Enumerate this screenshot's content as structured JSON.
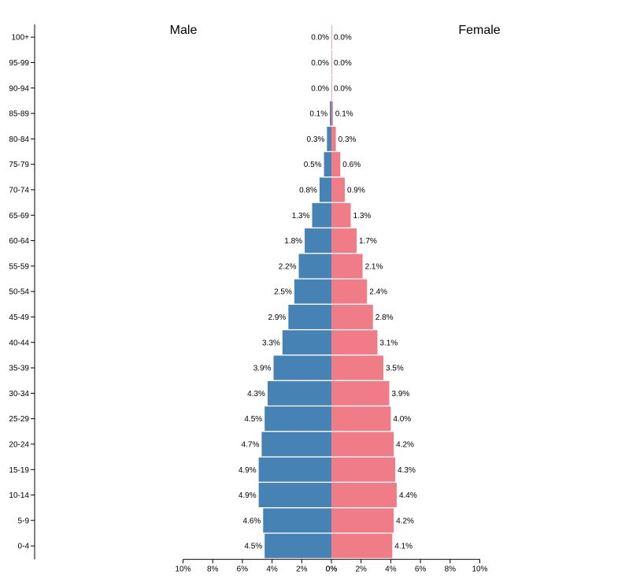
{
  "chart_data": {
    "type": "bar",
    "orientation": "horizontal-population-pyramid",
    "categories": [
      "100+",
      "95-99",
      "90-94",
      "85-89",
      "80-84",
      "75-79",
      "70-74",
      "65-69",
      "60-64",
      "55-59",
      "50-54",
      "45-49",
      "40-44",
      "35-39",
      "30-34",
      "25-29",
      "20-24",
      "15-19",
      "10-14",
      "5-9",
      "0-4"
    ],
    "series": [
      {
        "name": "Male",
        "color": "#4682b4",
        "values": [
          0.0,
          0.0,
          0.0,
          0.1,
          0.3,
          0.5,
          0.8,
          1.3,
          1.8,
          2.2,
          2.5,
          2.9,
          3.3,
          3.9,
          4.3,
          4.5,
          4.7,
          4.9,
          4.9,
          4.6,
          4.5
        ],
        "labels": [
          "0.0%",
          "0.0%",
          "0.0%",
          "0.1%",
          "0.3%",
          "0.5%",
          "0.8%",
          "1.3%",
          "1.8%",
          "2.2%",
          "2.5%",
          "2.9%",
          "3.3%",
          "3.9%",
          "4.3%",
          "4.5%",
          "4.7%",
          "4.9%",
          "4.9%",
          "4.6%",
          "4.5%"
        ]
      },
      {
        "name": "Female",
        "color": "#f07c87",
        "values": [
          0.0,
          0.0,
          0.0,
          0.1,
          0.3,
          0.6,
          0.9,
          1.3,
          1.7,
          2.1,
          2.4,
          2.8,
          3.1,
          3.5,
          3.9,
          4.0,
          4.2,
          4.3,
          4.4,
          4.2,
          4.1
        ],
        "labels": [
          "0.0%",
          "0.0%",
          "0.0%",
          "0.1%",
          "0.3%",
          "0.6%",
          "0.9%",
          "1.3%",
          "1.7%",
          "2.1%",
          "2.4%",
          "2.8%",
          "3.1%",
          "3.5%",
          "3.9%",
          "4.0%",
          "4.2%",
          "4.3%",
          "4.4%",
          "4.2%",
          "4.1%"
        ]
      }
    ],
    "xlim": [
      -10,
      10
    ],
    "xticks": [
      "10%",
      "8%",
      "6%",
      "4%",
      "2%",
      "0%",
      "0%",
      "2%",
      "4%",
      "6%",
      "8%",
      "10%"
    ],
    "title_left": "Male",
    "title_right": "Female",
    "grid": false
  }
}
